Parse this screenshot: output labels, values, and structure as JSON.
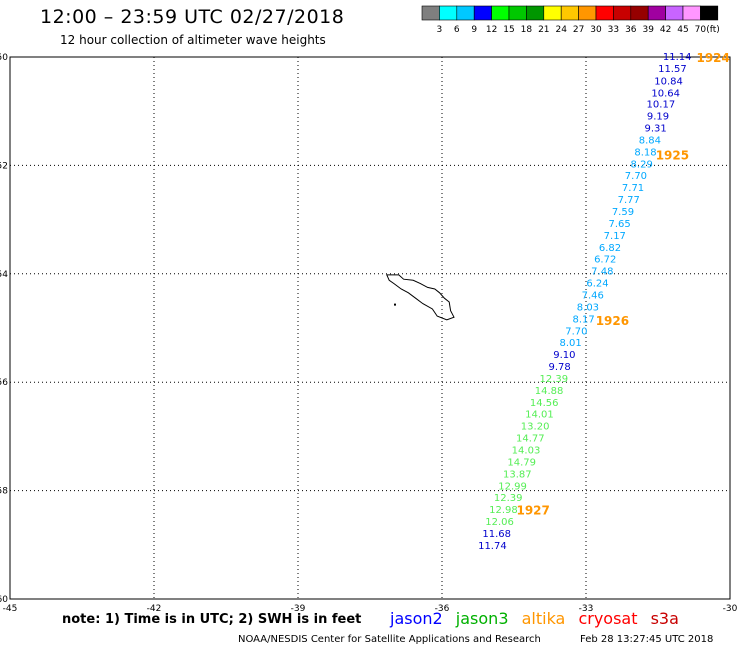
{
  "header": {
    "title": "12:00 – 23:59 UTC 02/27/2018",
    "subtitle": "12 hour collection of altimeter wave heights"
  },
  "colorbar": {
    "colors": [
      "#7f7f7f",
      "#00ffff",
      "#00c8ff",
      "#0000ff",
      "#00ff00",
      "#00c800",
      "#009600",
      "#ffff00",
      "#ffc800",
      "#ff9600",
      "#ff0000",
      "#c80000",
      "#960000",
      "#a000a0",
      "#c864ff",
      "#ff96ff",
      "#000000"
    ],
    "labels": [
      "3",
      "6",
      "9",
      "12",
      "15",
      "18",
      "21",
      "24",
      "27",
      "30",
      "33",
      "36",
      "39",
      "42",
      "45",
      "70"
    ],
    "unit": "(ft)"
  },
  "chart_data": {
    "type": "scatter",
    "xlim": [
      -45,
      -30
    ],
    "ylim": [
      -60,
      -50
    ],
    "x_ticks": [
      "-45",
      "-42",
      "-39",
      "-36",
      "-33",
      "-30"
    ],
    "y_ticks": [
      "-50",
      "-52",
      "-54",
      "-56",
      "-58",
      "-60"
    ],
    "grid": true,
    "points": [
      {
        "lon": -31.1,
        "lat": -50.0,
        "v": "11.14",
        "c": "#0000cc"
      },
      {
        "lon": -31.2,
        "lat": -50.22,
        "v": "11.57",
        "c": "#0000cc"
      },
      {
        "lon": -31.28,
        "lat": -50.45,
        "v": "10.84",
        "c": "#0000cc"
      },
      {
        "lon": -31.34,
        "lat": -50.67,
        "v": "10.64",
        "c": "#0000cc"
      },
      {
        "lon": -31.44,
        "lat": -50.88,
        "v": "10.17",
        "c": "#0000cc"
      },
      {
        "lon": -31.5,
        "lat": -51.1,
        "v": "9.19",
        "c": "#0000cc"
      },
      {
        "lon": -31.55,
        "lat": -51.32,
        "v": "9.31",
        "c": "#0000cc"
      },
      {
        "lon": -31.67,
        "lat": -51.54,
        "v": "8.84",
        "c": "#00a8ff"
      },
      {
        "lon": -31.76,
        "lat": -51.76,
        "v": "8.18",
        "c": "#00a8ff"
      },
      {
        "lon": -31.84,
        "lat": -51.98,
        "v": "8.29",
        "c": "#00a8ff"
      },
      {
        "lon": -31.96,
        "lat": -52.2,
        "v": "7.70",
        "c": "#00a8ff"
      },
      {
        "lon": -32.02,
        "lat": -52.42,
        "v": "7.71",
        "c": "#00a8ff"
      },
      {
        "lon": -32.11,
        "lat": -52.64,
        "v": "7.77",
        "c": "#00a8ff"
      },
      {
        "lon": -32.23,
        "lat": -52.86,
        "v": "7.59",
        "c": "#00a8ff"
      },
      {
        "lon": -32.3,
        "lat": -53.08,
        "v": "7.65",
        "c": "#00a8ff"
      },
      {
        "lon": -32.4,
        "lat": -53.3,
        "v": "7.17",
        "c": "#00a8ff"
      },
      {
        "lon": -32.5,
        "lat": -53.52,
        "v": "6.82",
        "c": "#00a8ff"
      },
      {
        "lon": -32.6,
        "lat": -53.74,
        "v": "6.72",
        "c": "#00a8ff"
      },
      {
        "lon": -32.66,
        "lat": -53.96,
        "v": "7.48",
        "c": "#00a8ff"
      },
      {
        "lon": -32.76,
        "lat": -54.18,
        "v": "6.24",
        "c": "#00a8ff"
      },
      {
        "lon": -32.86,
        "lat": -54.4,
        "v": "7.46",
        "c": "#00a8ff"
      },
      {
        "lon": -32.96,
        "lat": -54.62,
        "v": "8.03",
        "c": "#00a8ff"
      },
      {
        "lon": -33.05,
        "lat": -54.84,
        "v": "8.17",
        "c": "#00a8ff"
      },
      {
        "lon": -33.2,
        "lat": -55.06,
        "v": "7.70",
        "c": "#00a8ff"
      },
      {
        "lon": -33.32,
        "lat": -55.28,
        "v": "8.01",
        "c": "#00a8ff"
      },
      {
        "lon": -33.45,
        "lat": -55.5,
        "v": "9.10",
        "c": "#0000cc"
      },
      {
        "lon": -33.55,
        "lat": -55.72,
        "v": "9.78",
        "c": "#0000cc"
      },
      {
        "lon": -33.67,
        "lat": -55.94,
        "v": "12.39",
        "c": "#55ee55"
      },
      {
        "lon": -33.77,
        "lat": -56.16,
        "v": "14.88",
        "c": "#55ee55"
      },
      {
        "lon": -33.87,
        "lat": -56.38,
        "v": "14.56",
        "c": "#55ee55"
      },
      {
        "lon": -33.97,
        "lat": -56.6,
        "v": "14.01",
        "c": "#55ee55"
      },
      {
        "lon": -34.06,
        "lat": -56.82,
        "v": "13.20",
        "c": "#55ee55"
      },
      {
        "lon": -34.16,
        "lat": -57.04,
        "v": "14.77",
        "c": "#55ee55"
      },
      {
        "lon": -34.25,
        "lat": -57.26,
        "v": "14.03",
        "c": "#55ee55"
      },
      {
        "lon": -34.34,
        "lat": -57.48,
        "v": "14.79",
        "c": "#55ee55"
      },
      {
        "lon": -34.43,
        "lat": -57.7,
        "v": "13.87",
        "c": "#55ee55"
      },
      {
        "lon": -34.53,
        "lat": -57.92,
        "v": "12.99",
        "c": "#55ee55"
      },
      {
        "lon": -34.62,
        "lat": -58.14,
        "v": "12.39",
        "c": "#55ee55"
      },
      {
        "lon": -34.72,
        "lat": -58.36,
        "v": "12.98",
        "c": "#55ee55"
      },
      {
        "lon": -34.8,
        "lat": -58.58,
        "v": "12.06",
        "c": "#55ee55"
      },
      {
        "lon": -34.86,
        "lat": -58.8,
        "v": "11.68",
        "c": "#0000cc"
      },
      {
        "lon": -34.95,
        "lat": -59.02,
        "v": "11.74",
        "c": "#0000cc"
      }
    ],
    "time_labels": [
      {
        "lon": -30.35,
        "lat": -50.0,
        "t": "1924"
      },
      {
        "lon": -31.2,
        "lat": -51.8,
        "t": "1925"
      },
      {
        "lon": -32.45,
        "lat": -54.85,
        "t": "1926"
      },
      {
        "lon": -34.1,
        "lat": -58.35,
        "t": "1927"
      }
    ],
    "island": [
      [
        -37.15,
        -54.02
      ],
      [
        -36.9,
        -54.02
      ],
      [
        -36.8,
        -54.1
      ],
      [
        -36.6,
        -54.12
      ],
      [
        -36.45,
        -54.18
      ],
      [
        -36.3,
        -54.25
      ],
      [
        -36.15,
        -54.28
      ],
      [
        -36.05,
        -54.35
      ],
      [
        -35.95,
        -54.45
      ],
      [
        -35.85,
        -54.52
      ],
      [
        -35.82,
        -54.68
      ],
      [
        -35.75,
        -54.8
      ],
      [
        -35.9,
        -54.85
      ],
      [
        -36.1,
        -54.78
      ],
      [
        -36.2,
        -54.65
      ],
      [
        -36.4,
        -54.55
      ],
      [
        -36.55,
        -54.45
      ],
      [
        -36.7,
        -54.35
      ],
      [
        -36.85,
        -54.28
      ],
      [
        -37.0,
        -54.18
      ],
      [
        -37.1,
        -54.12
      ],
      [
        -37.15,
        -54.02
      ]
    ]
  },
  "footer": {
    "note": "note: 1) Time is in UTC; 2) SWH is in feet",
    "satellites": [
      {
        "name": "jason2",
        "color": "#0000ff"
      },
      {
        "name": "jason3",
        "color": "#00b000"
      },
      {
        "name": "altika",
        "color": "#ff9600"
      },
      {
        "name": "cryosat",
        "color": "#ff0000"
      },
      {
        "name": "s3a",
        "color": "#c80000"
      }
    ],
    "credit": "NOAA/NESDIS Center for Satellite Applications and Research",
    "timestamp": "Feb 28 13:27:45 UTC 2018"
  }
}
